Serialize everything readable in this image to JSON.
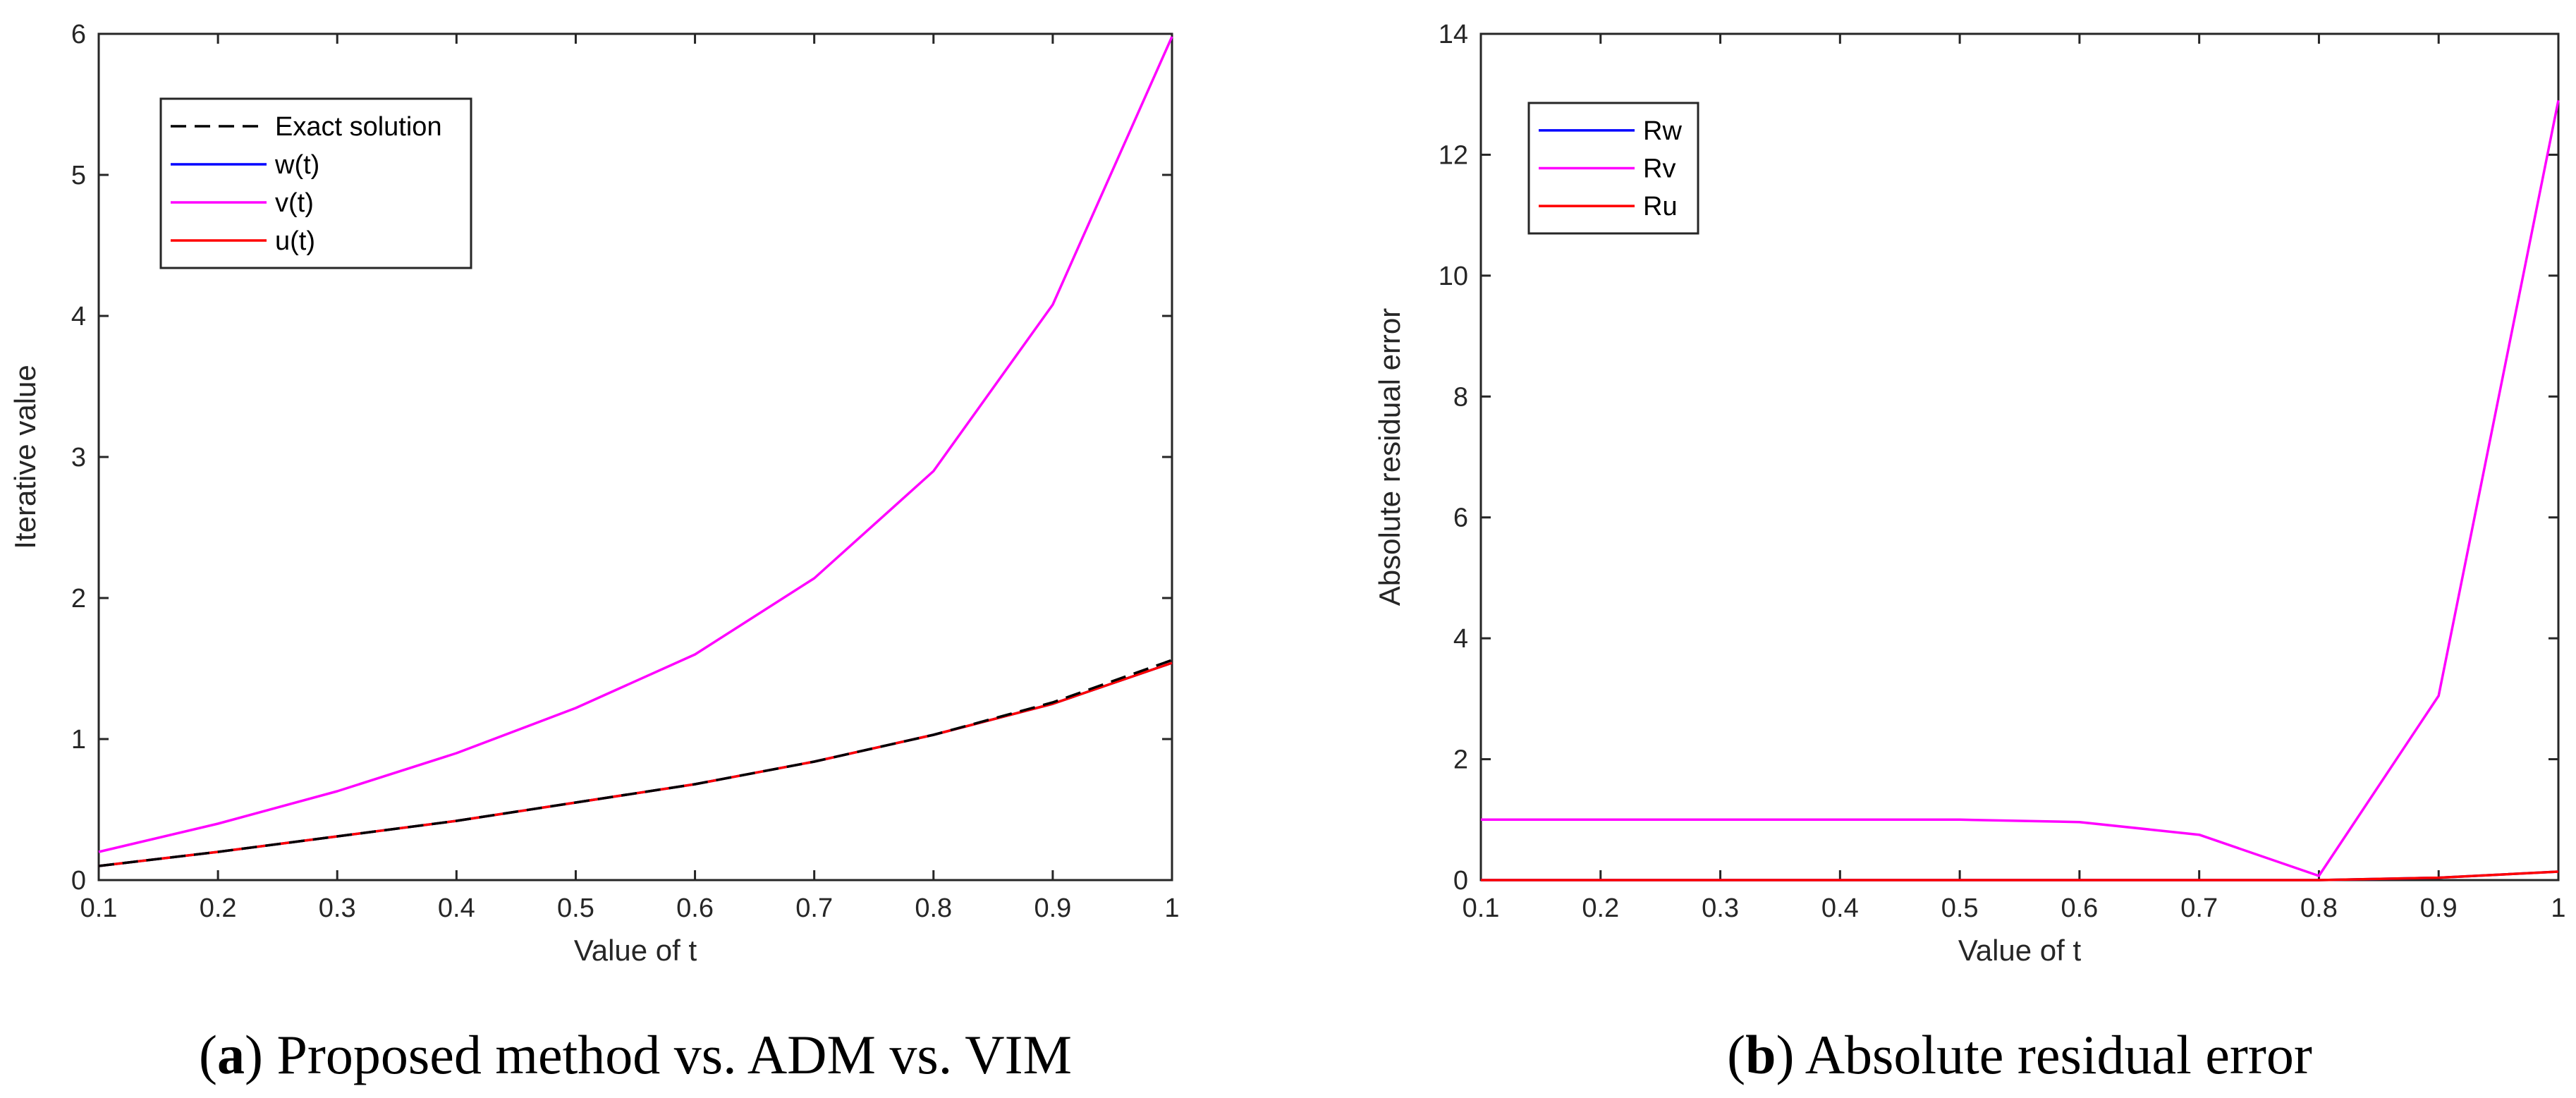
{
  "chart_data": [
    {
      "id": "a",
      "type": "line",
      "xlabel": "Value of t",
      "ylabel": "Iterative value",
      "xlim": [
        0.1,
        1
      ],
      "ylim": [
        0,
        6
      ],
      "xticks": [
        "0.1",
        "0.2",
        "0.3",
        "0.4",
        "0.5",
        "0.6",
        "0.7",
        "0.8",
        "0.9",
        "1"
      ],
      "yticks": [
        "0",
        "1",
        "2",
        "3",
        "4",
        "5",
        "6"
      ],
      "legend_position": "top-left",
      "series": [
        {
          "name": "Exact solution",
          "color": "#000000",
          "style": "dashed",
          "x": [
            0.1,
            0.2,
            0.3,
            0.4,
            0.5,
            0.6,
            0.7,
            0.8,
            0.9,
            1.0
          ],
          "y": [
            0.1,
            0.2,
            0.31,
            0.42,
            0.55,
            0.68,
            0.84,
            1.03,
            1.26,
            1.56
          ]
        },
        {
          "name": "w(t)",
          "color": "#0000ff",
          "style": "solid",
          "x": [
            0.1,
            0.2,
            0.3,
            0.4,
            0.5,
            0.6,
            0.7,
            0.8,
            0.9,
            1.0
          ],
          "y": [
            0.1,
            0.2,
            0.31,
            0.42,
            0.55,
            0.68,
            0.84,
            1.03,
            1.25,
            1.54
          ]
        },
        {
          "name": "v(t)",
          "color": "#ff00ff",
          "style": "solid",
          "x": [
            0.1,
            0.2,
            0.3,
            0.4,
            0.5,
            0.6,
            0.7,
            0.8,
            0.9,
            1.0
          ],
          "y": [
            0.2,
            0.4,
            0.63,
            0.9,
            1.22,
            1.6,
            2.14,
            2.9,
            4.08,
            5.98
          ]
        },
        {
          "name": "u(t)",
          "color": "#ff0000",
          "style": "solid",
          "x": [
            0.1,
            0.2,
            0.3,
            0.4,
            0.5,
            0.6,
            0.7,
            0.8,
            0.9,
            1.0
          ],
          "y": [
            0.1,
            0.2,
            0.31,
            0.42,
            0.55,
            0.68,
            0.84,
            1.03,
            1.25,
            1.54
          ]
        }
      ],
      "caption_letter": "a",
      "caption_text": "Proposed method vs. ADM vs. VIM"
    },
    {
      "id": "b",
      "type": "line",
      "xlabel": "Value of t",
      "ylabel": "Absolute residual error",
      "xlim": [
        0.1,
        1
      ],
      "ylim": [
        0,
        14
      ],
      "xticks": [
        "0.1",
        "0.2",
        "0.3",
        "0.4",
        "0.5",
        "0.6",
        "0.7",
        "0.8",
        "0.9",
        "1"
      ],
      "yticks": [
        "0",
        "2",
        "4",
        "6",
        "8",
        "10",
        "12",
        "14"
      ],
      "legend_position": "top-left",
      "series": [
        {
          "name": "Rw",
          "color": "#0000ff",
          "style": "solid",
          "x": [
            0.1,
            0.2,
            0.3,
            0.4,
            0.5,
            0.6,
            0.7,
            0.8,
            0.9,
            1.0
          ],
          "y": [
            0,
            0,
            0,
            0,
            0,
            0,
            0,
            0,
            0.04,
            0.14
          ]
        },
        {
          "name": "Rv",
          "color": "#ff00ff",
          "style": "solid",
          "x": [
            0.1,
            0.2,
            0.3,
            0.4,
            0.5,
            0.6,
            0.7,
            0.8,
            0.9,
            1.0
          ],
          "y": [
            1.0,
            1.0,
            1.0,
            1.0,
            1.0,
            0.96,
            0.75,
            0.07,
            3.05,
            12.9
          ]
        },
        {
          "name": "Ru",
          "color": "#ff0000",
          "style": "solid",
          "x": [
            0.1,
            0.2,
            0.3,
            0.4,
            0.5,
            0.6,
            0.7,
            0.8,
            0.9,
            1.0
          ],
          "y": [
            0,
            0,
            0,
            0,
            0,
            0,
            0,
            0,
            0.04,
            0.14
          ]
        }
      ],
      "caption_letter": "b",
      "caption_text": "Absolute residual error"
    }
  ]
}
